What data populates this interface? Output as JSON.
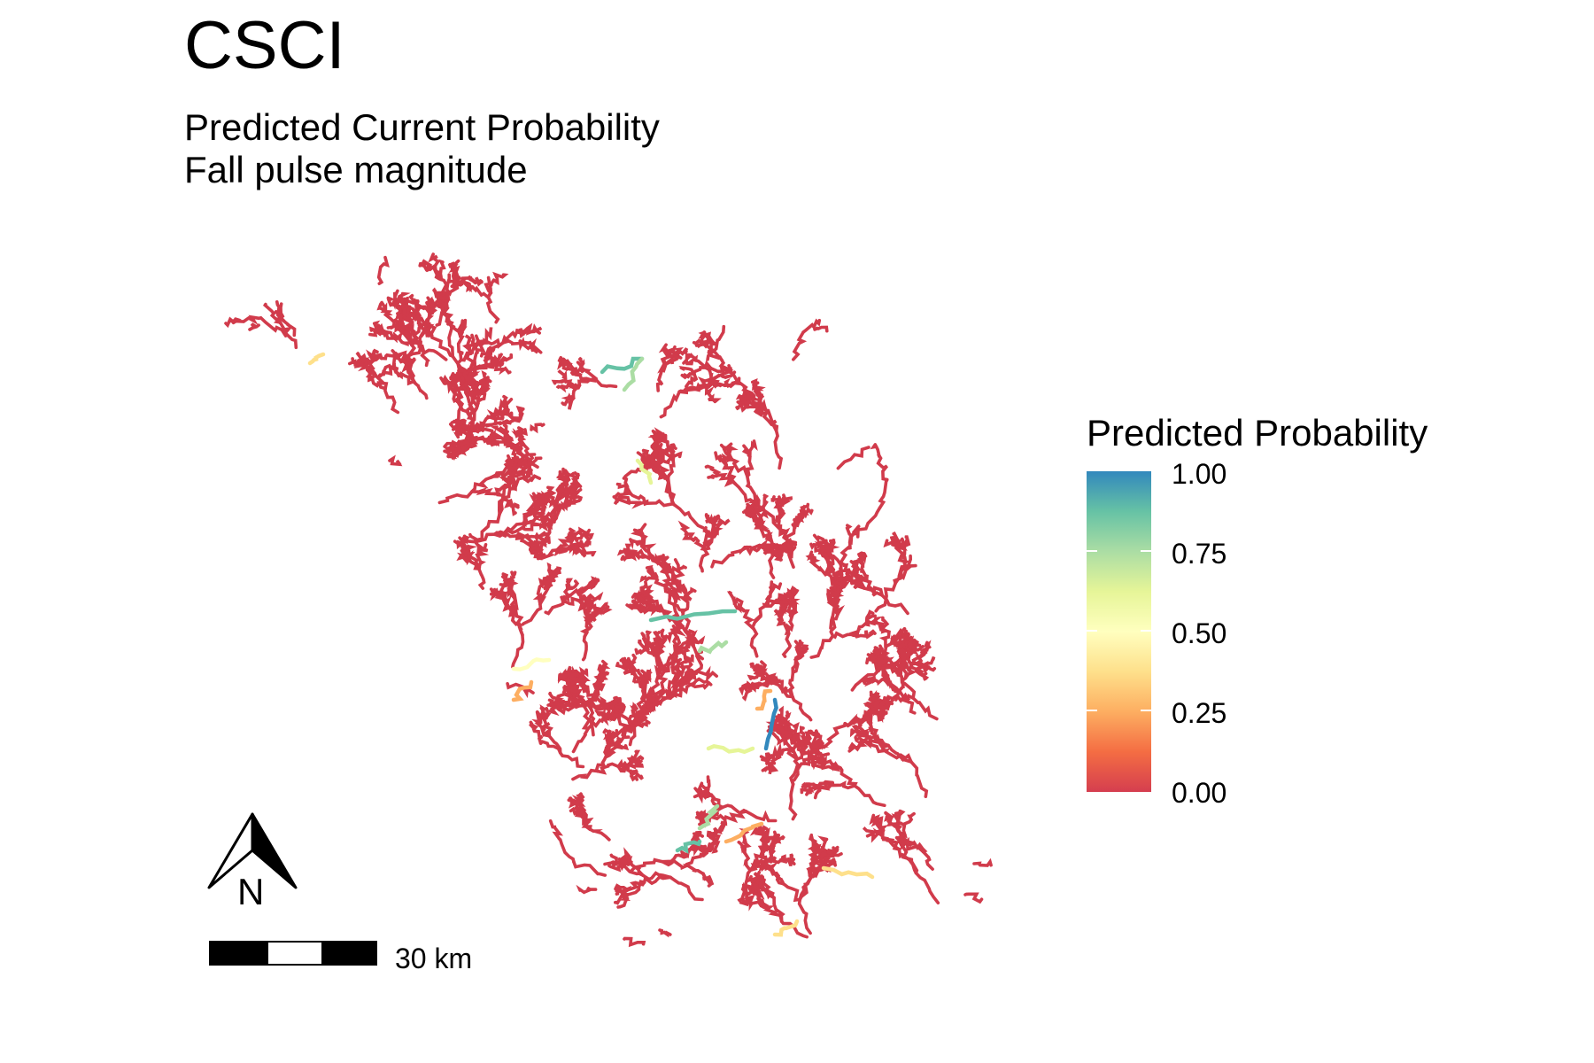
{
  "title": "CSCI",
  "subtitle": [
    "Predicted Current Probability",
    "Fall pulse magnitude"
  ],
  "legend": {
    "title": "Predicted Probability",
    "ticks": [
      "1.00",
      "0.75",
      "0.50",
      "0.25",
      "0.00"
    ],
    "tick_values": [
      1.0,
      0.75,
      0.5,
      0.25,
      0.0
    ],
    "palette": [
      "#d53e4f",
      "#f46d43",
      "#fdae61",
      "#fee08b",
      "#ffffbf",
      "#e6f598",
      "#abdda4",
      "#66c2a5",
      "#3288bd"
    ]
  },
  "map": {
    "stream_color_default": "#d13b4b",
    "high_probability_segments": [
      {
        "value": 0.9
      },
      {
        "value": 0.7
      },
      {
        "value": 0.35
      },
      {
        "value": 0.6
      },
      {
        "value": 0.9
      },
      {
        "value": 0.8
      },
      {
        "value": 0.45
      },
      {
        "value": 0.25
      },
      {
        "value": 0.95
      },
      {
        "value": 0.6
      },
      {
        "value": 0.3
      },
      {
        "value": 0.7
      },
      {
        "value": 0.4
      },
      {
        "value": 0.85
      },
      {
        "value": 0.3
      },
      {
        "value": 0.35
      }
    ]
  },
  "north_arrow": {
    "label": "N"
  },
  "scale_bar": {
    "label": "30 km"
  }
}
